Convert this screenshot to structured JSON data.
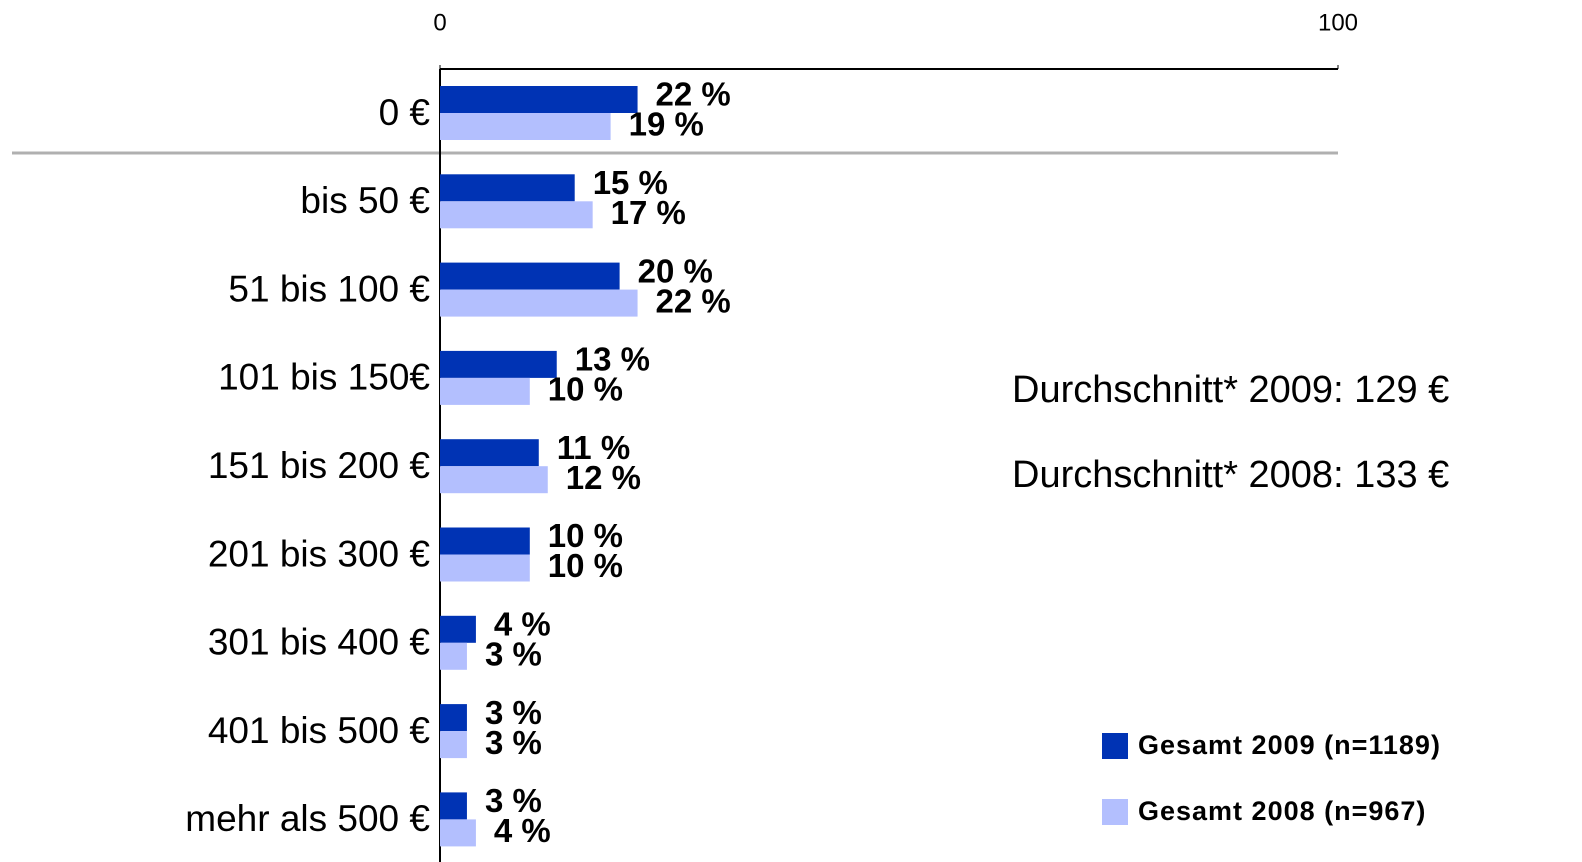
{
  "chart_data": {
    "type": "hbar",
    "categories": [
      "0 €",
      "bis 50 €",
      "51 bis 100 €",
      "101 bis 150€",
      "151 bis 200 €",
      "201 bis 300 €",
      "301 bis 400 €",
      "401 bis 500 €",
      "mehr als 500 €"
    ],
    "series": [
      {
        "name": "Gesamt 2009 (n=1189)",
        "color": "#0033b4",
        "values": [
          22,
          15,
          20,
          13,
          11,
          10,
          4,
          3,
          3
        ],
        "value_labels": [
          "22 %",
          "15 %",
          "20 %",
          "13 %",
          "11 %",
          "10 %",
          "4 %",
          "3 %",
          "3 %"
        ]
      },
      {
        "name": "Gesamt 2008 (n=967)",
        "color": "#b3bffe",
        "values": [
          19,
          17,
          22,
          10,
          12,
          10,
          3,
          3,
          4
        ],
        "value_labels": [
          "19 %",
          "17 %",
          "22 %",
          "10 %",
          "12 %",
          "10 %",
          "3 %",
          "3 %",
          "4 %"
        ]
      }
    ],
    "xlim": [
      0,
      100
    ],
    "xticks": [
      0,
      100
    ],
    "annotations": [
      "Durchschnitt* 2009: 129 €",
      "Durchschnitt* 2008: 133 €"
    ],
    "legend": "bottom-right"
  }
}
